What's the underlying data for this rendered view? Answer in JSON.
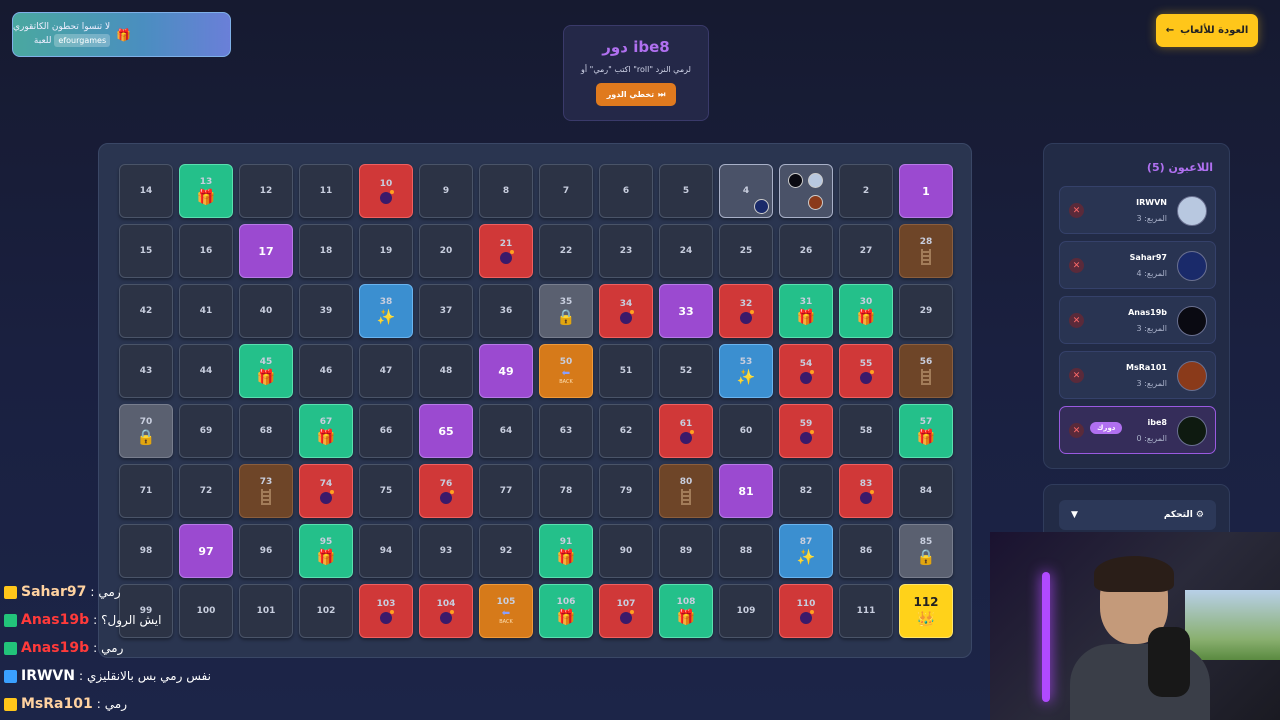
{
  "promo": {
    "line1": "لا تنسوا تحطون الكاتقوري",
    "word": "للعبة",
    "code": "efourgames",
    "icon": "gift-icon"
  },
  "back_button": {
    "label": "العودة للألعاب",
    "icon": "arrow-left-icon"
  },
  "turn": {
    "title": "دور ibe8",
    "hint": "اكتب \"رمي\" أو \"roll\" لرمي النرد",
    "skip_label": "تخطي الدور",
    "skip_icon": "skip-icon"
  },
  "board": {
    "rows": [
      [
        14,
        13,
        12,
        11,
        10,
        9,
        8,
        7,
        6,
        5,
        4,
        3,
        2,
        1
      ],
      [
        15,
        16,
        17,
        18,
        19,
        20,
        21,
        22,
        23,
        24,
        25,
        26,
        27,
        28
      ],
      [
        42,
        41,
        40,
        39,
        38,
        37,
        36,
        35,
        34,
        33,
        32,
        31,
        30,
        29
      ],
      [
        43,
        44,
        45,
        46,
        47,
        48,
        49,
        50,
        51,
        52,
        53,
        54,
        55,
        56
      ],
      [
        70,
        69,
        68,
        67,
        66,
        65,
        64,
        63,
        62,
        61,
        60,
        59,
        58,
        57
      ],
      [
        71,
        72,
        73,
        74,
        75,
        76,
        77,
        78,
        79,
        80,
        81,
        82,
        83,
        84
      ],
      [
        98,
        97,
        96,
        95,
        94,
        93,
        92,
        91,
        90,
        89,
        88,
        87,
        86,
        85
      ],
      [
        99,
        100,
        101,
        102,
        103,
        104,
        105,
        106,
        107,
        108,
        109,
        110,
        111,
        112
      ]
    ],
    "special": {
      "13": "gift",
      "10": "bomb",
      "4": "player",
      "3": "player",
      "1": "purple",
      "17": "purple",
      "21": "bomb",
      "28": "ladder",
      "38": "star",
      "35": "lock",
      "34": "bomb",
      "33": "purple",
      "32": "bomb",
      "31": "gift",
      "30": "gift",
      "45": "gift",
      "49": "purple",
      "50": "back",
      "53": "star",
      "54": "bomb",
      "55": "bomb",
      "56": "ladder",
      "70": "lock",
      "67": "gift",
      "65": "purple",
      "61": "bomb",
      "59": "bomb",
      "57": "gift",
      "73": "ladder",
      "74": "bomb",
      "76": "bomb",
      "80": "ladder",
      "81": "purple",
      "83": "bomb",
      "97": "purple",
      "95": "gift",
      "91": "gift",
      "87": "star",
      "85": "lock",
      "103": "bomb",
      "104": "bomb",
      "105": "back",
      "106": "gift",
      "107": "bomb",
      "108": "gift",
      "110": "bomb",
      "112": "crown"
    },
    "back_label": "BACK"
  },
  "players": {
    "title": "اللاعبون (5)",
    "list": [
      {
        "name": "IRWVN",
        "square": "المربع: 3",
        "avatar_color": "#b8c8e0",
        "active": false
      },
      {
        "name": "Sahar97",
        "square": "المربع: 4",
        "avatar_color": "#1a2a6a",
        "active": false
      },
      {
        "name": "Anas19b",
        "square": "المربع: 3",
        "avatar_color": "#0a0a12",
        "active": false
      },
      {
        "name": "MsRa101",
        "square": "المربع: 3",
        "avatar_color": "#8a3a1a",
        "active": false
      },
      {
        "name": "ibe8",
        "square": "المربع: 0",
        "avatar_color": "#0e1a10",
        "active": true,
        "badge": "دورك"
      }
    ]
  },
  "control": {
    "label": "التحكم",
    "icon": "gear-icon",
    "caret": "▼"
  },
  "chat": [
    {
      "user": "Sahar97",
      "msg": "رمي",
      "color": "#ffd2a0",
      "badge_color": "#ffc61a"
    },
    {
      "user": "Anas19b",
      "msg": "ايش الرول؟",
      "color": "#ff3a3a",
      "badge_color": "#22c47a"
    },
    {
      "user": "Anas19b",
      "msg": "رمي",
      "color": "#ff3a3a",
      "badge_color": "#22c47a"
    },
    {
      "user": "IRWVN",
      "msg": "نفس رمي بس بالانقليزي",
      "color": "#ffffff",
      "badge_color": "#3aa0ff"
    },
    {
      "user": "MsRa101",
      "msg": "رمي",
      "color": "#ffd2a0",
      "badge_color": "#ffc61a"
    }
  ],
  "colors": {
    "accent_purple": "#b070f0",
    "gift": "#24c08a",
    "bomb": "#d03838",
    "ladder": "#6e4528",
    "star": "#3b8fd0",
    "back": "#d67a1a",
    "crown": "#ffd21a"
  }
}
